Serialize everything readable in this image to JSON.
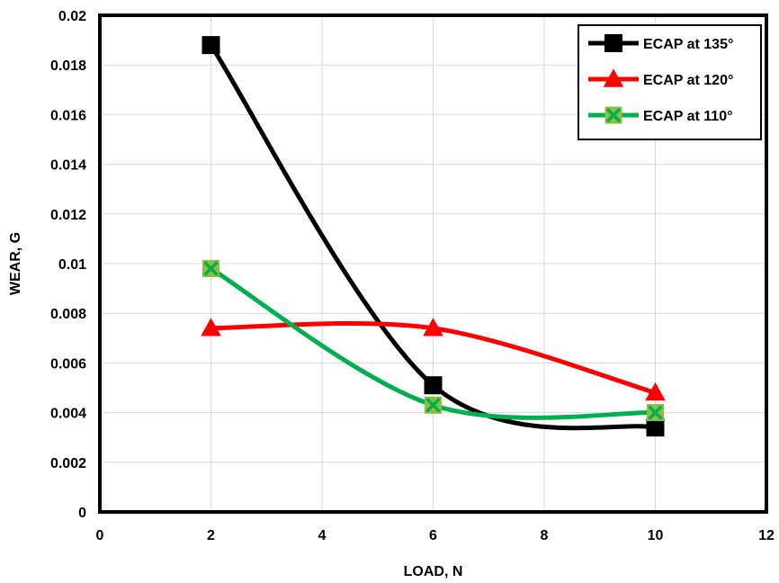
{
  "chart_data": {
    "type": "line",
    "title": "",
    "xlabel": "LOAD, N",
    "ylabel": "WEAR, G",
    "xlim": [
      0,
      12
    ],
    "ylim": [
      0,
      0.02
    ],
    "xticks": [
      "0",
      "2",
      "4",
      "6",
      "8",
      "10",
      "12"
    ],
    "yticks": [
      "0",
      "0.002",
      "0.004",
      "0.006",
      "0.008",
      "0.01",
      "0.012",
      "0.014",
      "0.016",
      "0.018",
      "0.02"
    ],
    "grid": true,
    "legend_position": "top-right",
    "x": [
      2,
      6,
      10
    ],
    "series": [
      {
        "name": "ECAP at 135°",
        "values": [
          0.0188,
          0.0051,
          0.0034
        ],
        "color": "#000000",
        "marker": "square"
      },
      {
        "name": "ECAP at 120°",
        "values": [
          0.0074,
          0.0074,
          0.0048
        ],
        "color": "#ff0000",
        "marker": "triangle"
      },
      {
        "name": "ECAP at 110°",
        "values": [
          0.0098,
          0.0043,
          0.004
        ],
        "color": "#00b050",
        "marker": "x-square",
        "marker_fill": "#8cbf3f"
      }
    ]
  }
}
